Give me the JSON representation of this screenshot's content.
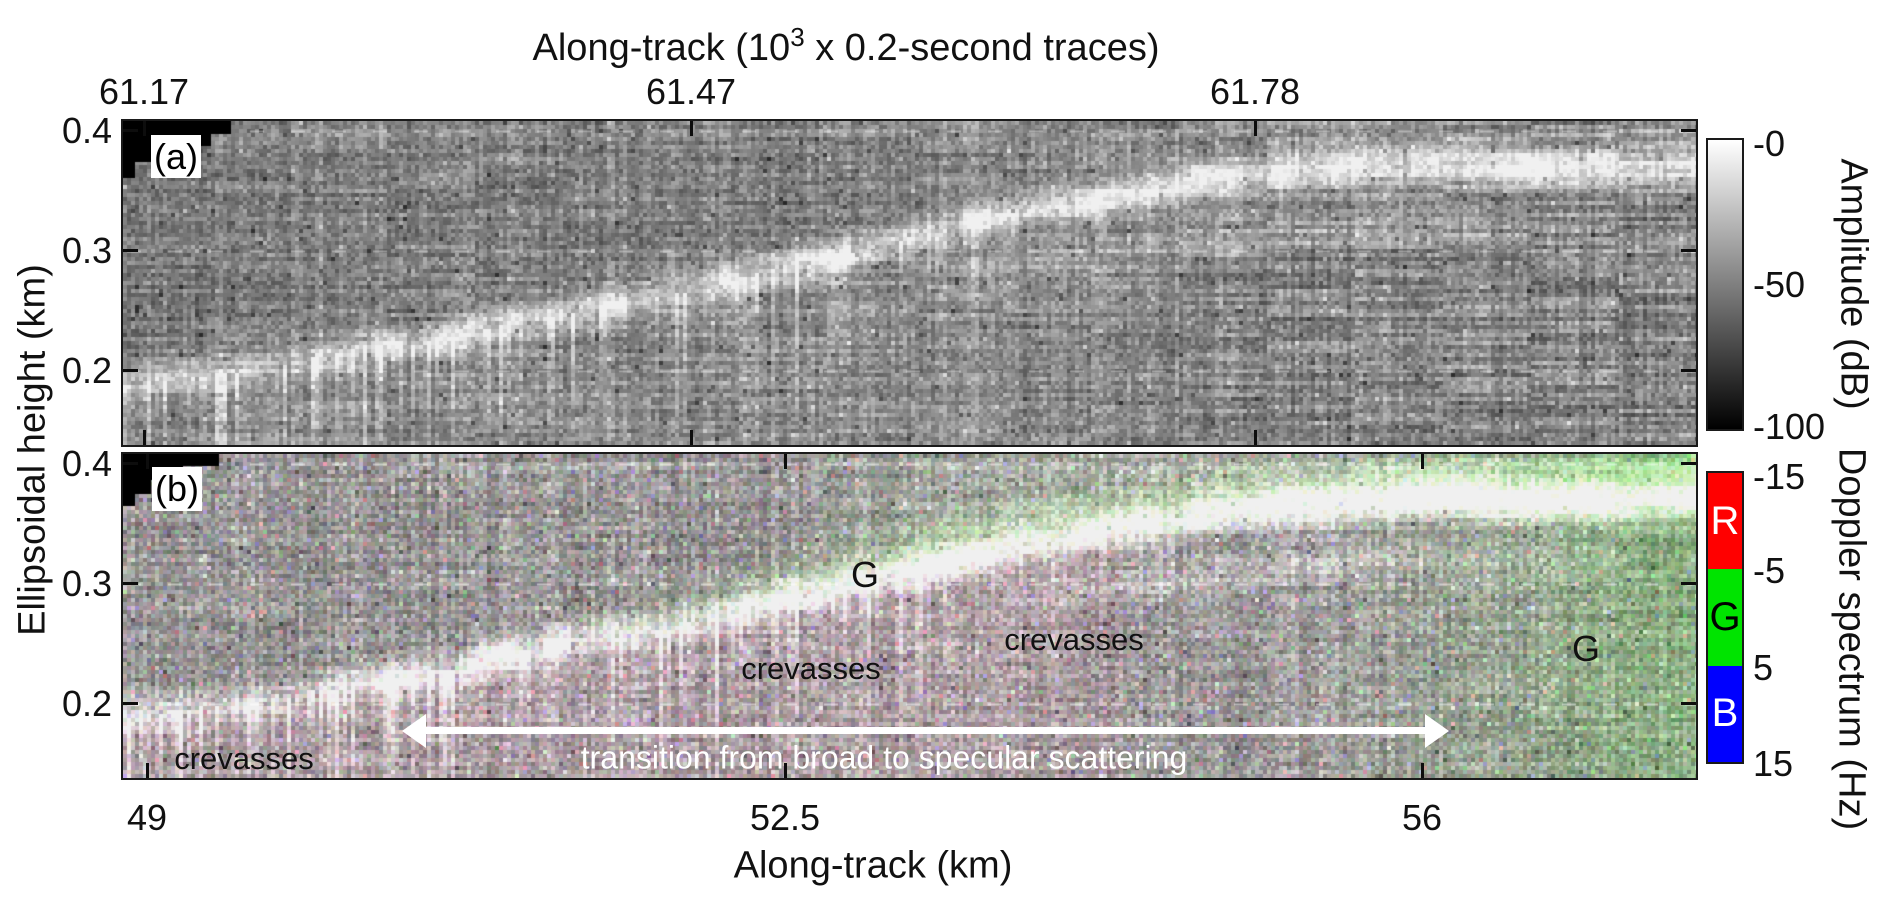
{
  "figure": {
    "top_axis": {
      "title_pre": "Along-track (10",
      "title_sup": "3",
      "title_post": " x 0.2-second traces)",
      "ticks": [
        "61.17",
        "61.47",
        "61.78"
      ]
    },
    "bottom_axis": {
      "label": "Along-track (km)",
      "ticks": [
        "49",
        "52.5",
        "56"
      ]
    },
    "y_axis": {
      "label": "Ellipsoidal height (km)",
      "panel_a_ticks": [
        "0.4",
        "0.3",
        "0.2"
      ],
      "panel_b_ticks": [
        "0.4",
        "0.3",
        "0.2"
      ]
    },
    "panel_a": {
      "tag": "(a)",
      "colorbar": {
        "label": "Amplitude (dB)",
        "ticks": [
          "-0",
          "-50",
          "-100"
        ],
        "colormap": "grayscale",
        "top_color": "#ffffff",
        "bottom_color": "#000000"
      }
    },
    "panel_b": {
      "tag": "(b)",
      "colorbar": {
        "label": "Doppler spectrum (Hz)",
        "ticks": [
          "-15",
          "-5",
          "5",
          "15"
        ],
        "segments": [
          {
            "letter": "R",
            "color": "#ff0000",
            "text_color": "#ffffff"
          },
          {
            "letter": "G",
            "color": "#00e400",
            "text_color": "#000000"
          },
          {
            "letter": "B",
            "color": "#0000ff",
            "text_color": "#ffffff"
          }
        ]
      },
      "annotations": {
        "g_upper": "G",
        "crevasses_mid": "crevasses",
        "crevasses_upper": "crevasses",
        "g_right": "G",
        "crevasses_left": "crevasses",
        "transition": "transition from broad to specular scattering"
      }
    }
  },
  "chart_data": {
    "type": "heatmap",
    "title": "Radar depth-sounder along-track section (two-panel radargram)",
    "panels": [
      {
        "id": "a",
        "kind": "radar amplitude radargram",
        "x_axis_top": {
          "label": "Along-track (10^3 x 0.2-second traces)",
          "ticks": [
            61.17,
            61.47,
            61.78
          ]
        },
        "y_axis": {
          "label": "Ellipsoidal height (km)",
          "ticks": [
            0.4,
            0.3,
            0.2
          ],
          "range_km": [
            0.145,
            0.407
          ]
        },
        "colorbar": {
          "label": "Amplitude (dB)",
          "ticks": [
            0,
            -50,
            -100
          ],
          "range": [
            -100,
            0
          ],
          "colormap": "grayscale"
        }
      },
      {
        "id": "b",
        "kind": "Doppler-spectrum RGB composite radargram",
        "y_axis": {
          "label": "Ellipsoidal height (km)",
          "ticks": [
            0.4,
            0.3,
            0.2
          ],
          "range_km": [
            0.145,
            0.407
          ]
        },
        "colorbar": {
          "label": "Doppler spectrum (Hz)",
          "ticks": [
            -15,
            -5,
            5,
            15
          ],
          "segments": [
            {
              "letter": "R",
              "band_hz": [
                -15,
                -5
              ],
              "color": "#ff0000"
            },
            {
              "letter": "G",
              "band_hz": [
                -5,
                5
              ],
              "color": "#00e400"
            },
            {
              "letter": "B",
              "band_hz": [
                5,
                15
              ],
              "color": "#0000ff"
            }
          ]
        },
        "annotations": [
          "G",
          "crevasses",
          "crevasses",
          "G",
          "crevasses",
          "transition from broad to specular scattering"
        ]
      }
    ],
    "x_axis_bottom": {
      "label": "Along-track (km)",
      "ticks": [
        49,
        52.5,
        56
      ],
      "range_km": [
        48.86,
        57.51
      ]
    },
    "reflector_profile": {
      "x_km": [
        48.9,
        49.6,
        50.4,
        51.2,
        52.0,
        52.9,
        53.7,
        54.5,
        55.3,
        56.2,
        56.7,
        57.5
      ],
      "height_km": [
        0.188,
        0.203,
        0.222,
        0.247,
        0.27,
        0.299,
        0.33,
        0.351,
        0.366,
        0.372,
        0.366,
        0.369
      ]
    }
  }
}
